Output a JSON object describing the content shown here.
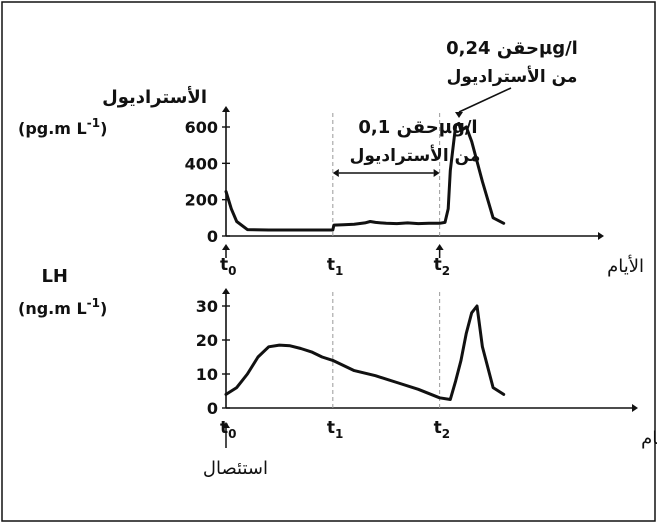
{
  "chart_data": [
    {
      "type": "line",
      "ylabel_line1": "الأستراديول",
      "ylabel_line2_prefix": "(pg.m L",
      "ylabel_line2_exp": "-1",
      "ylabel_line2_suffix": ")",
      "xlabel": "الأيام",
      "y_ticks": [
        0,
        200,
        400,
        600
      ],
      "ylim": [
        0,
        700
      ],
      "x_ticks": [
        {
          "x": 0,
          "label": "t",
          "sub": "0"
        },
        {
          "x": 1,
          "label": "t",
          "sub": "1"
        },
        {
          "x": 2,
          "label": "t",
          "sub": "2"
        }
      ],
      "xlim": [
        0,
        3.1
      ],
      "x": [
        0,
        0.05,
        0.1,
        0.2,
        0.4,
        0.7,
        1.0,
        1.01,
        1.1,
        1.2,
        1.3,
        1.35,
        1.4,
        1.5,
        1.6,
        1.7,
        1.8,
        1.9,
        2.0,
        2.05,
        2.08,
        2.1,
        2.15,
        2.18,
        2.2,
        2.25,
        2.3,
        2.4,
        2.5,
        2.6
      ],
      "y": [
        245,
        150,
        80,
        35,
        33,
        33,
        33,
        60,
        62,
        65,
        72,
        80,
        75,
        70,
        68,
        72,
        68,
        70,
        70,
        75,
        150,
        360,
        610,
        620,
        580,
        600,
        520,
        300,
        100,
        70
      ],
      "annotations": [
        {
          "line1": "حقن 0,1µg/l",
          "line2": "من الأستراديول",
          "type": "range",
          "x_from": 1,
          "x_to": 2
        },
        {
          "line1": "حقن 0,24µg/l",
          "line2": "من الأستراديول",
          "type": "arrow",
          "x": 2.2
        }
      ]
    },
    {
      "type": "line",
      "ylabel_line1": "LH",
      "ylabel_line2_prefix": "(ng.m L",
      "ylabel_line2_exp": "-1",
      "ylabel_line2_suffix": ")",
      "xlabel": "الأيام",
      "y_ticks": [
        0,
        10,
        20,
        30
      ],
      "ylim": [
        0,
        35
      ],
      "x_ticks": [
        {
          "x": 0,
          "label": "t",
          "sub": "0"
        },
        {
          "x": 1,
          "label": "t",
          "sub": "1"
        },
        {
          "x": 2,
          "label": "t",
          "sub": "2"
        }
      ],
      "xlim": [
        0,
        3.1
      ],
      "x": [
        0,
        0.1,
        0.2,
        0.3,
        0.4,
        0.5,
        0.6,
        0.7,
        0.8,
        0.9,
        1.0,
        1.1,
        1.2,
        1.4,
        1.6,
        1.8,
        2.0,
        2.1,
        2.15,
        2.2,
        2.25,
        2.3,
        2.35,
        2.4,
        2.5,
        2.6
      ],
      "y": [
        4,
        6,
        10,
        15,
        18,
        18.5,
        18.3,
        17.5,
        16.5,
        15,
        14,
        12.5,
        11,
        9.5,
        7.5,
        5.5,
        3,
        2.5,
        8,
        14,
        22,
        28,
        30,
        18,
        6,
        4
      ],
      "annotations": [
        {
          "text": "استئصال",
          "type": "arrow",
          "x": 0
        }
      ]
    }
  ]
}
